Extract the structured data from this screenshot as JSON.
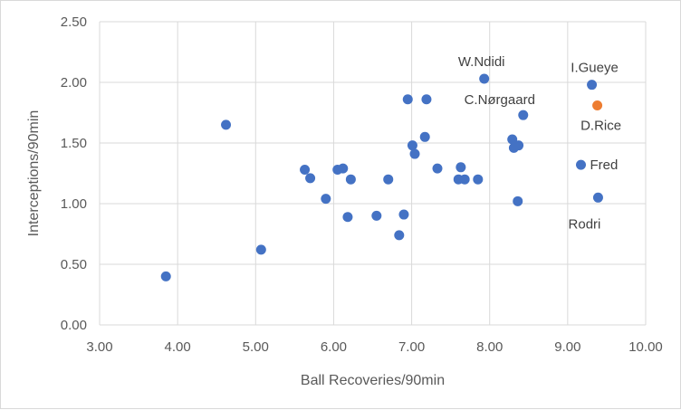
{
  "chart_data": {
    "type": "scatter",
    "title": "",
    "xlabel": "Ball Recoveries/90min",
    "ylabel": "Interceptions/90min",
    "xlim": [
      3.0,
      10.0
    ],
    "ylim": [
      0.0,
      2.5
    ],
    "x_ticks": [
      3,
      4,
      5,
      6,
      7,
      8,
      9,
      10
    ],
    "y_ticks": [
      0,
      0.5,
      1,
      1.5,
      2,
      2.5
    ],
    "x_tick_labels": [
      "3.00",
      "4.00",
      "5.00",
      "6.00",
      "7.00",
      "8.00",
      "9.00",
      "10.00"
    ],
    "y_tick_labels": [
      "0.00",
      "0.50",
      "1.00",
      "1.50",
      "2.00",
      "2.50"
    ],
    "grid": true,
    "colors": {
      "default": "#4472c4",
      "highlight": "#ed7d31"
    },
    "points": [
      {
        "x": 3.85,
        "y": 0.4
      },
      {
        "x": 4.62,
        "y": 1.65
      },
      {
        "x": 5.07,
        "y": 0.62
      },
      {
        "x": 5.63,
        "y": 1.28
      },
      {
        "x": 5.7,
        "y": 1.21
      },
      {
        "x": 5.9,
        "y": 1.04
      },
      {
        "x": 6.05,
        "y": 1.28
      },
      {
        "x": 6.12,
        "y": 1.29
      },
      {
        "x": 6.18,
        "y": 0.89
      },
      {
        "x": 6.22,
        "y": 1.2
      },
      {
        "x": 6.55,
        "y": 0.9
      },
      {
        "x": 6.7,
        "y": 1.2
      },
      {
        "x": 6.84,
        "y": 0.74
      },
      {
        "x": 6.9,
        "y": 0.91
      },
      {
        "x": 6.95,
        "y": 1.86
      },
      {
        "x": 7.01,
        "y": 1.48
      },
      {
        "x": 7.04,
        "y": 1.41
      },
      {
        "x": 7.17,
        "y": 1.55
      },
      {
        "x": 7.19,
        "y": 1.86
      },
      {
        "x": 7.33,
        "y": 1.29
      },
      {
        "x": 7.6,
        "y": 1.2
      },
      {
        "x": 7.63,
        "y": 1.3
      },
      {
        "x": 7.68,
        "y": 1.2
      },
      {
        "x": 7.85,
        "y": 1.2
      },
      {
        "x": 7.93,
        "y": 2.03,
        "label": "W.Ndidi",
        "label_pos": "above"
      },
      {
        "x": 8.29,
        "y": 1.53
      },
      {
        "x": 8.31,
        "y": 1.46
      },
      {
        "x": 8.37,
        "y": 1.48
      },
      {
        "x": 8.36,
        "y": 1.02
      },
      {
        "x": 8.43,
        "y": 1.73,
        "label": "C.Nørgaard",
        "label_pos": "above-left"
      },
      {
        "x": 9.17,
        "y": 1.32,
        "label": "Fred",
        "label_pos": "right"
      },
      {
        "x": 9.31,
        "y": 1.98,
        "label": "I.Gueye",
        "label_pos": "above-right"
      },
      {
        "x": 9.38,
        "y": 1.81,
        "label": "D.Rice",
        "label_pos": "below-right",
        "highlight": true
      },
      {
        "x": 9.39,
        "y": 1.05,
        "label": "Rodri",
        "label_pos": "below"
      }
    ]
  }
}
